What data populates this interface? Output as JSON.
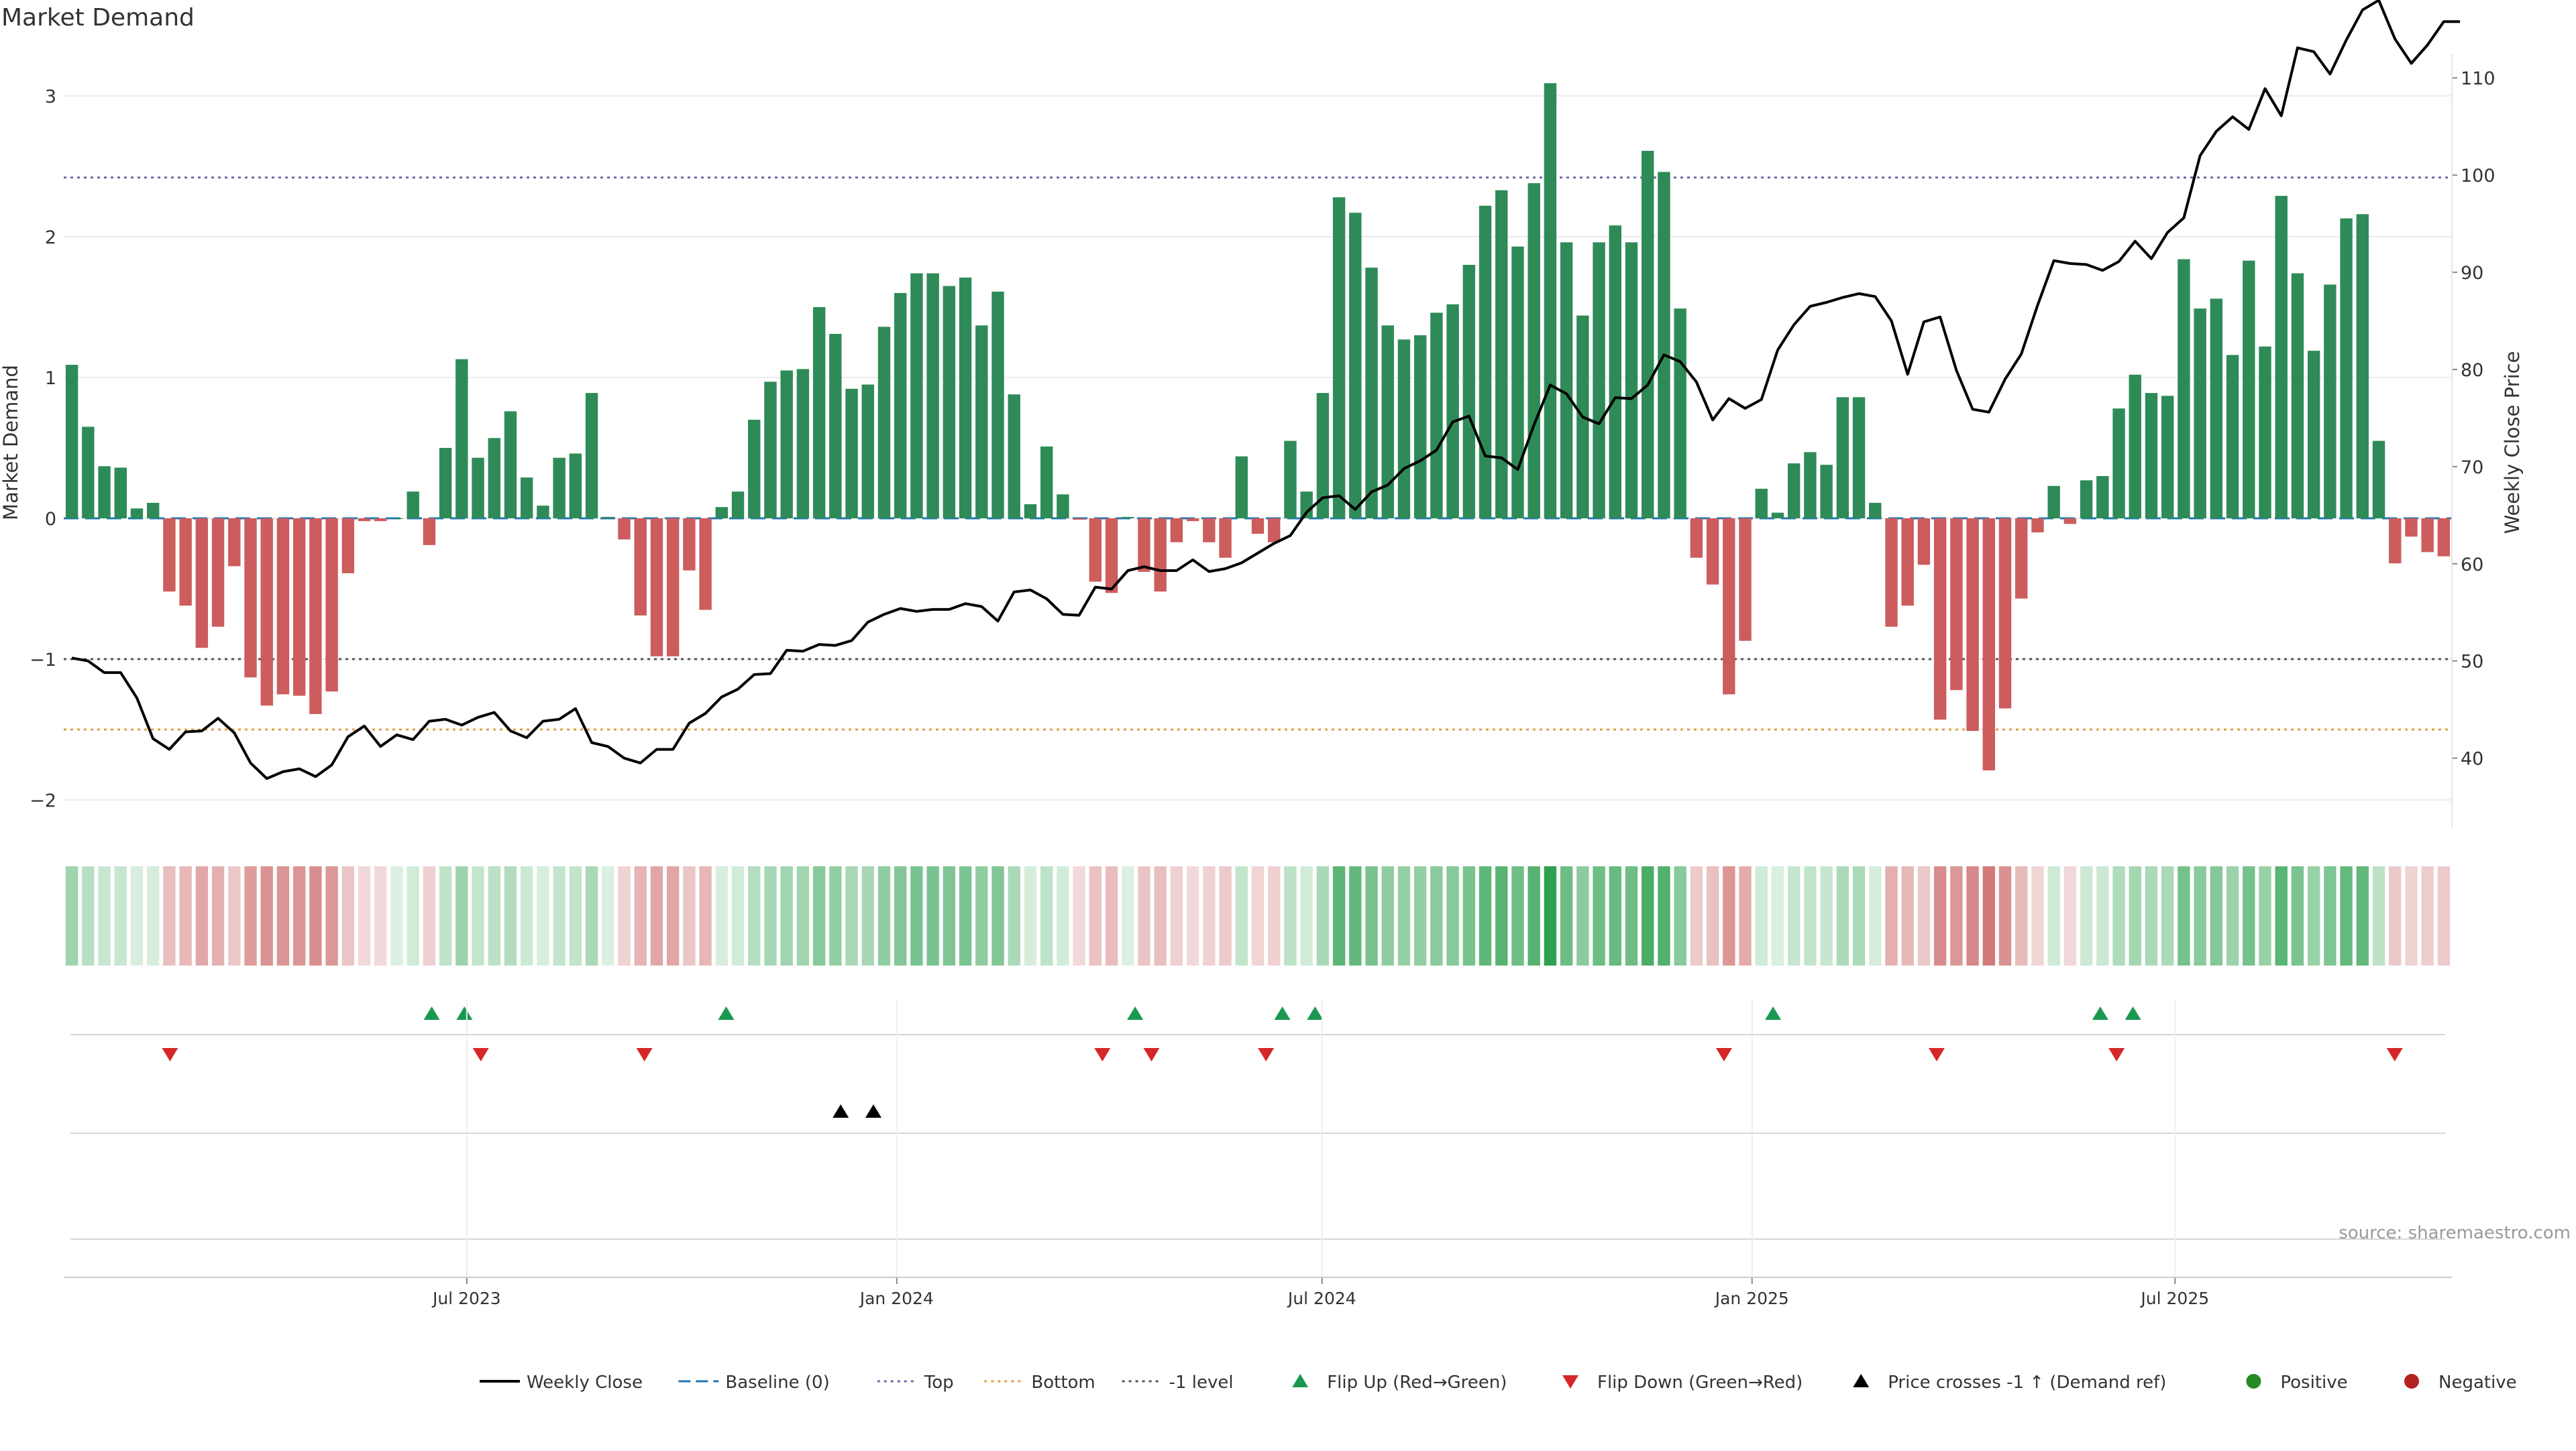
{
  "title": "Market Demand",
  "source": "source: sharemaestro.com",
  "colors": {
    "positive": "#2e8b57",
    "negative": "#cd5c5c",
    "close": "#000000",
    "baseline": "#1f77b4",
    "top": "#6a6aa8",
    "bottom": "#e0a040",
    "neg1": "#555555",
    "flip_up": "#1a9850",
    "flip_down": "#d62728",
    "cross": "#000000",
    "pos_dot": "#228b22",
    "neg_dot": "#b22222"
  },
  "legend": [
    {
      "label": "Weekly Close",
      "kind": "line-solid",
      "color": "#000000"
    },
    {
      "label": "Baseline (0)",
      "kind": "line-dash",
      "color": "#1f77b4"
    },
    {
      "label": "Top",
      "kind": "line-dot",
      "color": "#6a6aa8"
    },
    {
      "label": "Bottom",
      "kind": "line-dot",
      "color": "#e0a040"
    },
    {
      "label": "-1 level",
      "kind": "line-dot",
      "color": "#555555"
    },
    {
      "label": "Flip Up (Red→Green)",
      "kind": "tri-up",
      "color": "#1a9850"
    },
    {
      "label": "Flip Down (Green→Red)",
      "kind": "tri-down",
      "color": "#d62728"
    },
    {
      "label": "Price crosses -1 ↑ (Demand ref)",
      "kind": "tri-up",
      "color": "#000000"
    },
    {
      "label": "Positive",
      "kind": "dot",
      "color": "#228b22"
    },
    {
      "label": "Negative",
      "kind": "dot",
      "color": "#b22222"
    }
  ],
  "chart_data": {
    "type": "bar",
    "title": "Market Demand",
    "ylabel": "Market Demand",
    "y2label": "Weekly Close Price",
    "ylim": [
      -2.2,
      3.3
    ],
    "yticks": [
      -2,
      -1,
      0,
      1,
      2,
      3
    ],
    "ytick_labels": [
      "−2",
      "−1",
      "0",
      "1",
      "2",
      "3"
    ],
    "y2lim": [
      32.8,
      112.5
    ],
    "y2ticks": [
      40,
      50,
      60,
      70,
      80,
      90,
      100,
      110
    ],
    "x_start": "2023-01-13",
    "x_end": "2025-10-24",
    "x_ticks": [
      {
        "date": "2023-07-01",
        "label": "Jul 2023"
      },
      {
        "date": "2024-01-01",
        "label": "Jan 2024"
      },
      {
        "date": "2024-07-01",
        "label": "Jul 2024"
      },
      {
        "date": "2025-01-01",
        "label": "Jan 2025"
      },
      {
        "date": "2025-07-01",
        "label": "Jul 2025"
      }
    ],
    "reference_lines": {
      "baseline": 0,
      "top": 2.42,
      "bottom": -1.5,
      "neg1": -1
    },
    "grid": true,
    "legend_position": "bottom",
    "series": [
      {
        "name": "Market Demand",
        "type": "bar",
        "values": [
          1.09,
          0.65,
          0.37,
          0.36,
          0.07,
          0.11,
          -0.52,
          -0.62,
          -0.92,
          -0.77,
          -0.34,
          -1.13,
          -1.33,
          -1.25,
          -1.26,
          -1.39,
          -1.23,
          -0.39,
          -0.02,
          -0.02,
          0,
          0.19,
          -0.19,
          0.5,
          1.13,
          0.43,
          0.57,
          0.76,
          0.29,
          0.09,
          0.43,
          0.46,
          0.89,
          0.01,
          -0.15,
          -0.69,
          -0.98,
          -0.98,
          -0.37,
          -0.65,
          0.08,
          0.19,
          0.7,
          0.97,
          1.05,
          1.06,
          1.5,
          1.31,
          0.92,
          0.95,
          1.36,
          1.6,
          1.74,
          1.74,
          1.65,
          1.71,
          1.37,
          1.61,
          0.88,
          0.1,
          0.51,
          0.17,
          -0.01,
          -0.45,
          -0.53,
          0.01,
          -0.38,
          -0.52,
          -0.17,
          -0.02,
          -0.17,
          -0.28,
          0.44,
          -0.11,
          -0.17,
          0.55,
          0.19,
          0.89,
          2.28,
          2.17,
          1.78,
          1.37,
          1.27,
          1.3,
          1.46,
          1.52,
          1.8,
          2.22,
          2.33,
          1.93,
          2.38,
          3.09,
          1.96,
          1.44,
          1.96,
          2.08,
          1.96,
          2.61,
          2.46,
          1.49,
          -0.28,
          -0.47,
          -1.25,
          -0.87,
          0.21,
          0.04,
          0.39,
          0.47,
          0.38,
          0.86,
          0.86,
          0.11,
          -0.77,
          -0.62,
          -0.33,
          -1.43,
          -1.22,
          -1.51,
          -1.79,
          -1.35,
          -0.57,
          -0.1,
          0.23,
          -0.04,
          0.27,
          0.3,
          0.78,
          1.02,
          0.89,
          0.87,
          1.84,
          1.49,
          1.56,
          1.16,
          1.83,
          1.22,
          2.29,
          1.74,
          1.19,
          1.66,
          2.13,
          2.16,
          0.55,
          -0.32,
          -0.13,
          -0.24,
          -0.27
        ]
      },
      {
        "name": "Weekly Close",
        "type": "line",
        "axis": "y2",
        "values": [
          50.3,
          50.0,
          48.8,
          48.8,
          46.2,
          42.0,
          40.9,
          42.7,
          42.8,
          44.1,
          42.6,
          39.5,
          37.9,
          38.6,
          38.9,
          38.1,
          39.3,
          42.2,
          43.3,
          41.2,
          42.4,
          41.9,
          43.8,
          44.0,
          43.4,
          44.2,
          44.7,
          42.8,
          42.1,
          43.8,
          44.0,
          45.1,
          41.6,
          41.2,
          40.0,
          39.5,
          40.9,
          40.9,
          43.6,
          44.6,
          46.3,
          47.1,
          48.6,
          48.7,
          51.1,
          51.0,
          51.7,
          51.6,
          52.1,
          54.0,
          54.8,
          55.4,
          55.1,
          55.3,
          55.3,
          55.9,
          55.6,
          54.1,
          57.1,
          57.3,
          56.4,
          54.8,
          54.7,
          57.6,
          57.4,
          59.3,
          59.7,
          59.3,
          59.3,
          60.4,
          59.2,
          59.5,
          60.1,
          61.1,
          62.1,
          62.9,
          65.3,
          66.8,
          67.0,
          65.6,
          67.4,
          68.1,
          69.8,
          70.6,
          71.7,
          74.6,
          75.2,
          71.1,
          70.9,
          69.7,
          74.3,
          78.4,
          77.5,
          75.1,
          74.4,
          77.1,
          77.0,
          78.4,
          81.5,
          80.8,
          78.7,
          74.8,
          77.0,
          76.0,
          76.9,
          82.0,
          84.6,
          86.5,
          86.9,
          87.4,
          87.8,
          87.5,
          85.0,
          79.5,
          84.9,
          85.4,
          79.9,
          75.9,
          75.6,
          79.0,
          81.6,
          86.6,
          91.2,
          90.9,
          90.8,
          90.2,
          91.1,
          93.2,
          91.4,
          94.1,
          95.6,
          102.0,
          104.5,
          106.0,
          104.7,
          108.9,
          106.1,
          113.1,
          112.7,
          110.4,
          113.9,
          117.0,
          118.0,
          114.0,
          111.5,
          113.4,
          115.8,
          115.8
        ]
      }
    ],
    "heat_strip": {
      "name": "demand intensity",
      "values_from": "Market Demand"
    },
    "flip_up": [
      "2023-06-16",
      "2023-06-30",
      "2023-10-20",
      "2024-04-12",
      "2024-06-14",
      "2024-06-28",
      "2025-01-10",
      "2025-05-30",
      "2025-06-13"
    ],
    "flip_down": [
      "2023-02-24",
      "2023-07-07",
      "2023-09-15",
      "2024-03-29",
      "2024-04-19",
      "2024-06-07",
      "2024-12-20",
      "2025-03-21",
      "2025-06-06",
      "2025-10-03"
    ],
    "price_crosses_neg1": [
      "2023-12-08",
      "2023-12-22"
    ]
  }
}
